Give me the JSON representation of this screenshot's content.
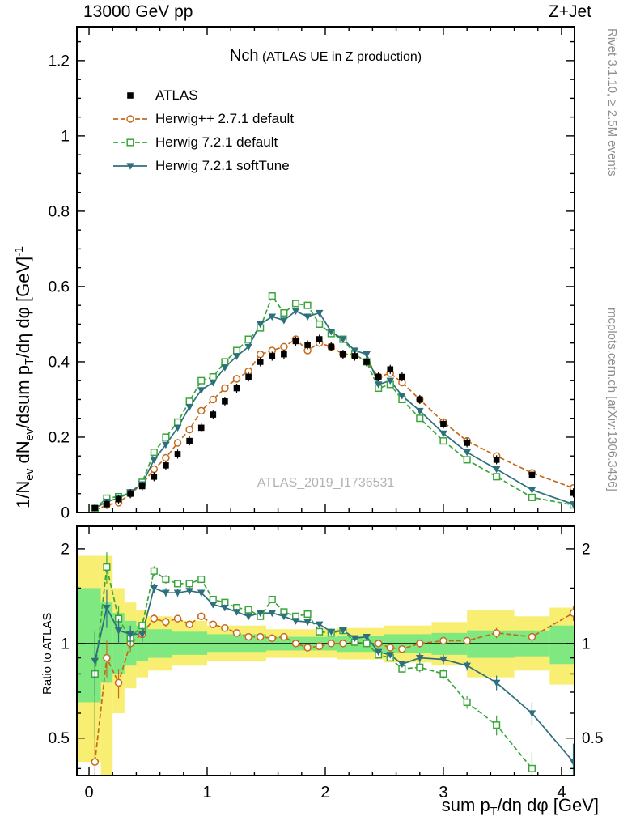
{
  "header": {
    "left": "13000 GeV pp",
    "right": "Z+Jet"
  },
  "title": {
    "main": "Nch",
    "suffix": "(ATLAS UE in Z production)"
  },
  "watermark": "ATLAS_2019_I1736531",
  "credits": {
    "right_top": "Rivet 3.1.10, ≥ 2.5M events",
    "right_bottom": "mcplots.cern.ch [arXiv:1306.3436]"
  },
  "axis_labels": {
    "y_main_parts": [
      {
        "t": "1/N"
      },
      {
        "t": "ev",
        "s": "sub"
      },
      {
        "t": " dN"
      },
      {
        "t": "ev",
        "s": "sub"
      },
      {
        "t": "/dsum p"
      },
      {
        "t": "T",
        "s": "sub"
      },
      {
        "t": "/dη dφ  [GeV]"
      },
      {
        "t": "-1",
        "s": "sup"
      }
    ],
    "x_parts": [
      {
        "t": "sum p"
      },
      {
        "t": "T",
        "s": "sub"
      },
      {
        "t": "/dη dφ [GeV]"
      }
    ],
    "ratio_y": "Ratio to ATLAS"
  },
  "chart_data": {
    "type": "line",
    "title": "Nch",
    "title_suffix": "(ATLAS UE in Z production)",
    "xlabel": "sum pT/dη dφ [GeV]",
    "ylabel": "1/Nev dNev/dsum pT/dη dφ [GeV]^-1",
    "ratio_label": "Ratio to ATLAS",
    "xlim": [
      -0.103,
      4.11
    ],
    "ylim_main": [
      0,
      1.29
    ],
    "ratio_ylim": [
      0.38,
      2.36
    ],
    "ratio_scale": "log",
    "grid": false,
    "legend_position": "top-left",
    "x_ticks": {
      "values": [
        0,
        1,
        2,
        3,
        4
      ],
      "labels": [
        "0",
        "1",
        "2",
        "3",
        "4"
      ]
    },
    "main_y_ticks": {
      "values": [
        0,
        0.2,
        0.4,
        0.6,
        0.8,
        1,
        1.2
      ],
      "labels": [
        "0",
        "0.2",
        "0.4",
        "0.6",
        "0.8",
        "1",
        "1.2"
      ]
    },
    "ratio_y_ticks": {
      "values": [
        0.5,
        1,
        2
      ],
      "labels": [
        "0.5",
        "1",
        "2"
      ],
      "minor": [
        0.4,
        0.6,
        0.7,
        0.8,
        0.9,
        1.5
      ]
    },
    "reference_line": 1,
    "band_colors": {
      "outer": "#f8ee72",
      "inner": "#80e880"
    },
    "x": [
      0.05,
      0.15,
      0.25,
      0.35,
      0.45,
      0.55,
      0.65,
      0.75,
      0.85,
      0.95,
      1.05,
      1.15,
      1.25,
      1.35,
      1.45,
      1.55,
      1.65,
      1.75,
      1.85,
      1.95,
      2.05,
      2.15,
      2.25,
      2.35,
      2.45,
      2.55,
      2.65,
      2.8,
      3.0,
      3.2,
      3.45,
      3.75,
      4.1
    ],
    "series": [
      {
        "name": "ATLAS",
        "color": "#000000",
        "marker": "square-filled",
        "line": "none",
        "yerr": 0.012,
        "values": [
          0.012,
          0.022,
          0.035,
          0.05,
          0.07,
          0.095,
          0.125,
          0.155,
          0.19,
          0.225,
          0.26,
          0.295,
          0.33,
          0.36,
          0.4,
          0.415,
          0.42,
          0.455,
          0.445,
          0.46,
          0.44,
          0.42,
          0.415,
          0.4,
          0.36,
          0.38,
          0.36,
          0.3,
          0.235,
          0.185,
          0.14,
          0.1,
          0.052
        ]
      },
      {
        "name": "Herwig++ 2.7.1 default",
        "color": "#c56a1b",
        "marker": "circle-open",
        "line": "dashed",
        "values": [
          0.005,
          0.02,
          0.026,
          0.05,
          0.075,
          0.115,
          0.145,
          0.185,
          0.22,
          0.27,
          0.3,
          0.33,
          0.355,
          0.375,
          0.42,
          0.43,
          0.44,
          0.46,
          0.43,
          0.45,
          0.44,
          0.42,
          0.42,
          0.4,
          0.36,
          0.37,
          0.345,
          0.3,
          0.24,
          0.19,
          0.15,
          0.105,
          0.065
        ],
        "ratio": [
          0.42,
          0.9,
          0.75,
          1.0,
          1.07,
          1.2,
          1.17,
          1.2,
          1.15,
          1.22,
          1.15,
          1.12,
          1.08,
          1.05,
          1.05,
          1.04,
          1.05,
          1.0,
          0.97,
          0.98,
          1.0,
          1.0,
          1.01,
          1.0,
          1.0,
          0.97,
          0.96,
          1.0,
          1.02,
          1.02,
          1.08,
          1.05,
          1.25
        ],
        "ratio_err": [
          0.25,
          0.12,
          0.08,
          0.06,
          0.05,
          0.04,
          0.04,
          0.03,
          0.03,
          0.03,
          0.02,
          0.02,
          0.02,
          0.02,
          0.02,
          0.02,
          0.02,
          0.02,
          0.02,
          0.02,
          0.02,
          0.02,
          0.02,
          0.02,
          0.02,
          0.02,
          0.02,
          0.03,
          0.03,
          0.03,
          0.04,
          0.05,
          0.07
        ]
      },
      {
        "name": "Herwig 7.2.1 default",
        "color": "#3aa63a",
        "marker": "square-open",
        "line": "dashed",
        "values": [
          0.01,
          0.038,
          0.042,
          0.052,
          0.08,
          0.16,
          0.2,
          0.24,
          0.295,
          0.35,
          0.36,
          0.4,
          0.43,
          0.46,
          0.49,
          0.575,
          0.53,
          0.555,
          0.55,
          0.5,
          0.475,
          0.46,
          0.42,
          0.4,
          0.33,
          0.34,
          0.3,
          0.25,
          0.19,
          0.14,
          0.095,
          0.04,
          0.02
        ],
        "ratio": [
          0.8,
          1.75,
          1.2,
          1.04,
          1.14,
          1.7,
          1.6,
          1.55,
          1.55,
          1.6,
          1.38,
          1.35,
          1.3,
          1.28,
          1.22,
          1.38,
          1.26,
          1.22,
          1.24,
          1.09,
          1.08,
          1.1,
          1.01,
          1.0,
          0.92,
          0.9,
          0.83,
          0.84,
          0.8,
          0.65,
          0.55,
          0.4,
          null
        ],
        "ratio_err": [
          0.3,
          0.2,
          0.12,
          0.08,
          0.06,
          0.06,
          0.05,
          0.04,
          0.04,
          0.04,
          0.03,
          0.03,
          0.03,
          0.03,
          0.02,
          0.03,
          0.02,
          0.02,
          0.02,
          0.02,
          0.02,
          0.02,
          0.02,
          0.02,
          0.02,
          0.02,
          0.02,
          0.03,
          0.03,
          0.03,
          0.04,
          0.05,
          0
        ]
      },
      {
        "name": "Herwig 7.2.1 softTune",
        "color": "#2e6f7e",
        "marker": "triangle-down-filled",
        "line": "solid",
        "values": [
          0.011,
          0.029,
          0.038,
          0.054,
          0.075,
          0.14,
          0.18,
          0.225,
          0.28,
          0.325,
          0.345,
          0.385,
          0.415,
          0.44,
          0.5,
          0.52,
          0.51,
          0.535,
          0.52,
          0.53,
          0.48,
          0.46,
          0.43,
          0.42,
          0.34,
          0.35,
          0.31,
          0.27,
          0.21,
          0.16,
          0.115,
          0.06,
          0.022
        ],
        "ratio": [
          0.88,
          1.3,
          1.1,
          1.07,
          1.07,
          1.5,
          1.45,
          1.45,
          1.47,
          1.45,
          1.33,
          1.3,
          1.26,
          1.22,
          1.25,
          1.25,
          1.22,
          1.18,
          1.17,
          1.15,
          1.09,
          1.1,
          1.04,
          1.05,
          0.94,
          0.92,
          0.86,
          0.9,
          0.89,
          0.85,
          0.75,
          0.6,
          0.42
        ],
        "ratio_err": [
          0.2,
          0.18,
          0.1,
          0.07,
          0.06,
          0.05,
          0.05,
          0.04,
          0.04,
          0.04,
          0.03,
          0.03,
          0.03,
          0.03,
          0.02,
          0.03,
          0.02,
          0.02,
          0.02,
          0.02,
          0.02,
          0.02,
          0.02,
          0.02,
          0.02,
          0.02,
          0.02,
          0.03,
          0.03,
          0.03,
          0.04,
          0.05,
          0.06
        ]
      }
    ],
    "bands": [
      {
        "x": [
          -0.103,
          0.1
        ],
        "yellow": [
          0.42,
          1.9
        ],
        "green": [
          0.65,
          1.5
        ]
      },
      {
        "x": [
          0.1,
          0.2
        ],
        "yellow": [
          0.38,
          1.9
        ],
        "green": [
          0.75,
          1.35
        ]
      },
      {
        "x": [
          0.2,
          0.3
        ],
        "yellow": [
          0.6,
          1.5
        ],
        "green": [
          0.8,
          1.25
        ]
      },
      {
        "x": [
          0.3,
          0.4
        ],
        "yellow": [
          0.72,
          1.35
        ],
        "green": [
          0.85,
          1.18
        ]
      },
      {
        "x": [
          0.4,
          0.5
        ],
        "yellow": [
          0.78,
          1.28
        ],
        "green": [
          0.88,
          1.14
        ]
      },
      {
        "x": [
          0.5,
          0.7
        ],
        "yellow": [
          0.82,
          1.22
        ],
        "green": [
          0.9,
          1.11
        ]
      },
      {
        "x": [
          0.7,
          1.0
        ],
        "yellow": [
          0.85,
          1.18
        ],
        "green": [
          0.92,
          1.09
        ]
      },
      {
        "x": [
          1.0,
          1.5
        ],
        "yellow": [
          0.88,
          1.14
        ],
        "green": [
          0.94,
          1.07
        ]
      },
      {
        "x": [
          1.5,
          2.1
        ],
        "yellow": [
          0.9,
          1.11
        ],
        "green": [
          0.95,
          1.05
        ]
      },
      {
        "x": [
          2.1,
          2.5
        ],
        "yellow": [
          0.89,
          1.12
        ],
        "green": [
          0.94,
          1.06
        ]
      },
      {
        "x": [
          2.5,
          2.9
        ],
        "yellow": [
          0.87,
          1.14
        ],
        "green": [
          0.93,
          1.07
        ]
      },
      {
        "x": [
          2.9,
          3.2
        ],
        "yellow": [
          0.85,
          1.17
        ],
        "green": [
          0.92,
          1.08
        ]
      },
      {
        "x": [
          3.2,
          3.6
        ],
        "yellow": [
          0.78,
          1.28
        ],
        "green": [
          0.9,
          1.1
        ]
      },
      {
        "x": [
          3.6,
          3.9
        ],
        "yellow": [
          0.82,
          1.22
        ],
        "green": [
          0.91,
          1.1
        ]
      },
      {
        "x": [
          3.9,
          4.11
        ],
        "yellow": [
          0.74,
          1.3
        ],
        "green": [
          0.86,
          1.14
        ]
      }
    ]
  }
}
